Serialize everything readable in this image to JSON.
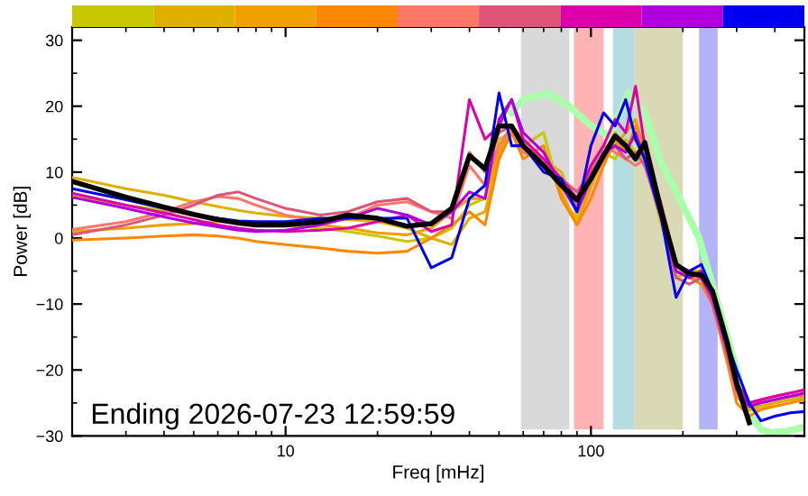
{
  "chart_data": {
    "type": "line",
    "xlabel": "Freq [mHz]",
    "ylabel": "Power [dB]",
    "log": "x",
    "xlim": [
      2,
      500
    ],
    "xticks": [
      10,
      100
    ],
    "ylim": [
      -30,
      32
    ],
    "yticks": [
      -30,
      -20,
      -10,
      0,
      10,
      20,
      30
    ],
    "grid": false,
    "legend": false,
    "marker": "none",
    "line_style": "solid",
    "x": [
      2,
      3,
      4,
      5,
      6,
      7,
      8,
      10,
      13,
      16,
      20,
      25,
      30,
      35,
      40,
      45,
      50,
      55,
      60,
      70,
      80,
      90,
      100,
      110,
      120,
      130,
      140,
      150,
      170,
      190,
      210,
      230,
      250,
      280,
      300,
      330,
      360,
      400,
      450,
      500
    ],
    "series": [
      {
        "color": "#c8c800",
        "values": [
          6.3,
          5,
          4.2,
          3.5,
          3,
          2.5,
          2.3,
          2,
          1.5,
          1,
          0.3,
          -0.5,
          0,
          1.5,
          5,
          6,
          15,
          16,
          14,
          16,
          6,
          3,
          10,
          13,
          12,
          15,
          13,
          12,
          2,
          -5,
          -6,
          -5,
          -9,
          -18,
          -22,
          -26,
          -26,
          -25,
          -24.5,
          -24
        ]
      },
      {
        "color": "#e0b000",
        "values": [
          9.2,
          7.5,
          6.5,
          5.5,
          4.8,
          4.2,
          3.8,
          3.3,
          3,
          2.8,
          2.5,
          1.5,
          0,
          -1,
          3,
          4,
          12,
          17,
          13,
          12,
          10,
          4,
          8,
          13,
          16,
          14,
          15,
          13,
          3,
          -6,
          -5,
          -5,
          -10,
          -17,
          -23,
          -26,
          -25.5,
          -25,
          -24.5,
          -24.5
        ]
      },
      {
        "color": "#f0a000",
        "values": [
          1,
          1.5,
          2,
          2.2,
          2.5,
          2.5,
          2.5,
          2.3,
          2,
          1.5,
          0.8,
          0.5,
          1.5,
          4,
          6,
          6,
          13,
          17,
          15,
          12,
          7,
          2,
          8,
          12,
          14,
          16,
          18,
          13,
          4,
          -5,
          -6,
          -6,
          -9,
          -19,
          -24,
          -26,
          -25,
          -24.5,
          -24,
          -23.5
        ]
      },
      {
        "color": "#ff8800",
        "values": [
          -0.3,
          0,
          0.3,
          0.5,
          0.3,
          0,
          -0.5,
          -1,
          -1.5,
          -2,
          -2.3,
          -2,
          0,
          2,
          4,
          2,
          12,
          16,
          12,
          14,
          6,
          2,
          6,
          11,
          15,
          13,
          17,
          14,
          5,
          -4,
          -6,
          -7,
          -10,
          -19,
          -25,
          -27,
          -26,
          -25.5,
          -25,
          -24.5
        ]
      },
      {
        "color": "#ff7766",
        "values": [
          1.3,
          2.5,
          4,
          5.5,
          6.3,
          6,
          5,
          3.5,
          2.5,
          3,
          5,
          5.5,
          4,
          3,
          11,
          8,
          14,
          17,
          13,
          12,
          8,
          5,
          11,
          14,
          13,
          12,
          11,
          12,
          4,
          -5,
          -6,
          -6,
          -10,
          -18,
          -24,
          -25,
          -25,
          -24.5,
          -24,
          -24
        ]
      },
      {
        "color": "#dd5577",
        "values": [
          0.5,
          2,
          3.5,
          5,
          6.5,
          7,
          6,
          4.5,
          3.5,
          4,
          5.5,
          6,
          4,
          4,
          13,
          10,
          16,
          17,
          14,
          12,
          9,
          7,
          10,
          13,
          14,
          12,
          13,
          11,
          3,
          -6,
          -7,
          -6,
          -10,
          -18,
          -23,
          -25,
          -24.5,
          -24,
          -23.5,
          -23
        ]
      },
      {
        "color": "#dd00aa",
        "values": [
          6.8,
          5,
          3.8,
          2.8,
          2,
          1.5,
          1.2,
          1,
          1.2,
          1.5,
          2.5,
          3.5,
          1,
          2,
          21,
          15,
          17,
          21,
          15,
          12,
          9,
          6,
          11,
          14,
          18,
          16,
          23,
          14,
          5,
          -4,
          -5,
          -6,
          -9,
          -17,
          -22,
          -25,
          -24.5,
          -24,
          -23.5,
          -23
        ]
      },
      {
        "color": "#b000dd",
        "values": [
          6.2,
          4.5,
          3.2,
          2.3,
          1.7,
          1.2,
          1,
          1.2,
          2,
          3,
          4.5,
          3.5,
          2,
          4,
          7,
          6,
          18,
          21,
          16,
          13,
          8,
          4,
          9,
          13,
          14,
          13,
          16,
          12,
          3,
          -5,
          -6,
          -5,
          -9,
          -17,
          -23,
          -25.5,
          -25,
          -24.5,
          -24,
          -23.5
        ]
      },
      {
        "color": "#0000ee",
        "values": [
          7.5,
          5.8,
          4.5,
          3.5,
          3,
          2.6,
          2.5,
          2.5,
          3,
          3,
          3,
          3,
          -4.5,
          -3,
          6,
          8,
          22,
          14,
          14,
          10,
          9,
          4,
          14,
          19,
          17,
          21,
          15,
          12,
          3,
          -9,
          -5,
          -4,
          -8,
          -16,
          -20,
          -25,
          -27.7,
          -27,
          -26.5,
          -26.3
        ]
      },
      {
        "color": "#aaffaa",
        "x": [
          55,
          60,
          72,
          85,
          100,
          115,
          133,
          150,
          170,
          200,
          226,
          269,
          300,
          323,
          360,
          388,
          440,
          500
        ],
        "values": [
          19,
          21,
          22,
          20,
          17,
          15.5,
          22,
          19,
          11.4,
          5,
          0,
          -12.3,
          -20,
          -25.9,
          -29,
          -29.5,
          -29.3,
          -28.6
        ]
      },
      {
        "color": "#000000",
        "x": [
          2,
          3,
          4,
          5,
          6,
          7,
          8,
          10,
          13,
          16,
          20,
          25,
          30,
          35,
          40,
          45,
          50,
          55,
          60,
          70,
          80,
          90,
          100,
          110,
          120,
          130,
          140,
          150,
          170,
          190,
          210,
          230,
          250,
          280,
          300,
          330
        ],
        "values": [
          8.6,
          6.2,
          4.7,
          3.6,
          2.8,
          2.3,
          2,
          2,
          2.5,
          3.5,
          3,
          1.8,
          2.2,
          4.5,
          12.5,
          10.5,
          17,
          17,
          14,
          11,
          8,
          5.8,
          9,
          12.5,
          15.5,
          14,
          12,
          14.5,
          4,
          -4,
          -5.4,
          -5.6,
          -8,
          -16,
          -22,
          -28
        ]
      }
    ],
    "bands": [
      {
        "axis": "x",
        "from": 59,
        "to": 85,
        "color": "#d9d9d9"
      },
      {
        "axis": "x",
        "from": 88,
        "to": 110,
        "color": "#ffb3b3"
      },
      {
        "axis": "x",
        "from": 118,
        "to": 139,
        "color": "#b3dde0"
      },
      {
        "axis": "x",
        "from": 139,
        "to": 200,
        "color": "#dad9b5"
      },
      {
        "axis": "x",
        "from": 226,
        "to": 260,
        "color": "#b3b3f8"
      }
    ],
    "annotations": [
      "Ending 2026-07-23 12:59:59"
    ]
  }
}
